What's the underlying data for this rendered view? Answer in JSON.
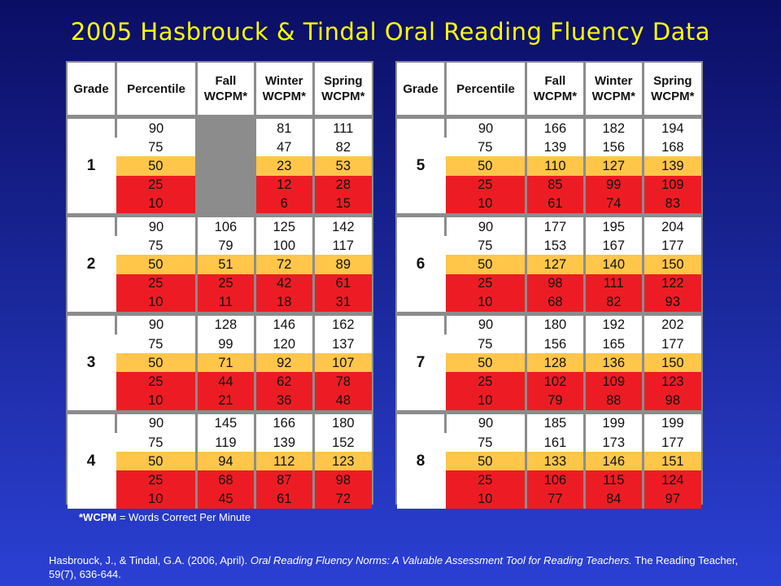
{
  "title": "2005 Hasbrouck & Tindal Oral Reading Fluency Data",
  "headers": [
    "Grade",
    "Percentile",
    "Fall WCPM*",
    "Winter WCPM*",
    "Spring WCPM*"
  ],
  "left_table": [
    {
      "grade": "1",
      "rows": [
        {
          "p": "90",
          "fall": "",
          "winter": "81",
          "spring": "111"
        },
        {
          "p": "75",
          "fall": "",
          "winter": "47",
          "spring": "82"
        },
        {
          "p": "50",
          "fall": "",
          "winter": "23",
          "spring": "53"
        },
        {
          "p": "25",
          "fall": "",
          "winter": "12",
          "spring": "28"
        },
        {
          "p": "10",
          "fall": "",
          "winter": "6",
          "spring": "15"
        }
      ]
    },
    {
      "grade": "2",
      "rows": [
        {
          "p": "90",
          "fall": "106",
          "winter": "125",
          "spring": "142"
        },
        {
          "p": "75",
          "fall": "79",
          "winter": "100",
          "spring": "117"
        },
        {
          "p": "50",
          "fall": "51",
          "winter": "72",
          "spring": "89"
        },
        {
          "p": "25",
          "fall": "25",
          "winter": "42",
          "spring": "61"
        },
        {
          "p": "10",
          "fall": "11",
          "winter": "18",
          "spring": "31"
        }
      ]
    },
    {
      "grade": "3",
      "rows": [
        {
          "p": "90",
          "fall": "128",
          "winter": "146",
          "spring": "162"
        },
        {
          "p": "75",
          "fall": "99",
          "winter": "120",
          "spring": "137"
        },
        {
          "p": "50",
          "fall": "71",
          "winter": "92",
          "spring": "107"
        },
        {
          "p": "25",
          "fall": "44",
          "winter": "62",
          "spring": "78"
        },
        {
          "p": "10",
          "fall": "21",
          "winter": "36",
          "spring": "48"
        }
      ]
    },
    {
      "grade": "4",
      "rows": [
        {
          "p": "90",
          "fall": "145",
          "winter": "166",
          "spring": "180"
        },
        {
          "p": "75",
          "fall": "119",
          "winter": "139",
          "spring": "152"
        },
        {
          "p": "50",
          "fall": "94",
          "winter": "112",
          "spring": "123"
        },
        {
          "p": "25",
          "fall": "68",
          "winter": "87",
          "spring": "98"
        },
        {
          "p": "10",
          "fall": "45",
          "winter": "61",
          "spring": "72"
        }
      ]
    }
  ],
  "right_table": [
    {
      "grade": "5",
      "rows": [
        {
          "p": "90",
          "fall": "166",
          "winter": "182",
          "spring": "194"
        },
        {
          "p": "75",
          "fall": "139",
          "winter": "156",
          "spring": "168"
        },
        {
          "p": "50",
          "fall": "110",
          "winter": "127",
          "spring": "139"
        },
        {
          "p": "25",
          "fall": "85",
          "winter": "99",
          "spring": "109"
        },
        {
          "p": "10",
          "fall": "61",
          "winter": "74",
          "spring": "83"
        }
      ]
    },
    {
      "grade": "6",
      "rows": [
        {
          "p": "90",
          "fall": "177",
          "winter": "195",
          "spring": "204"
        },
        {
          "p": "75",
          "fall": "153",
          "winter": "167",
          "spring": "177"
        },
        {
          "p": "50",
          "fall": "127",
          "winter": "140",
          "spring": "150"
        },
        {
          "p": "25",
          "fall": "98",
          "winter": "111",
          "spring": "122"
        },
        {
          "p": "10",
          "fall": "68",
          "winter": "82",
          "spring": "93"
        }
      ]
    },
    {
      "grade": "7",
      "rows": [
        {
          "p": "90",
          "fall": "180",
          "winter": "192",
          "spring": "202"
        },
        {
          "p": "75",
          "fall": "156",
          "winter": "165",
          "spring": "177"
        },
        {
          "p": "50",
          "fall": "128",
          "winter": "136",
          "spring": "150"
        },
        {
          "p": "25",
          "fall": "102",
          "winter": "109",
          "spring": "123"
        },
        {
          "p": "10",
          "fall": "79",
          "winter": "88",
          "spring": "98"
        }
      ]
    },
    {
      "grade": "8",
      "rows": [
        {
          "p": "90",
          "fall": "185",
          "winter": "199",
          "spring": "199"
        },
        {
          "p": "75",
          "fall": "161",
          "winter": "173",
          "spring": "177"
        },
        {
          "p": "50",
          "fall": "133",
          "winter": "146",
          "spring": "151"
        },
        {
          "p": "25",
          "fall": "106",
          "winter": "115",
          "spring": "124"
        },
        {
          "p": "10",
          "fall": "77",
          "winter": "84",
          "spring": "97"
        }
      ]
    }
  ],
  "footnote": {
    "term": "*WCPM",
    "definition": " = Words Correct Per Minute"
  },
  "citation": {
    "authors": "Hasbrouck, J., & Tindal, G.A. (2006, April). ",
    "work": "Oral Reading Fluency Norms: A Valuable Assessment Tool for Reading Teachers.",
    "source": " The Reading Teacher, 59(7), 636-644."
  },
  "colors": {
    "title": "#ffff00",
    "percentile_50": "#ffc64a",
    "percentile_25_10": "#ed1c24",
    "not_available": "#8c8c8c",
    "background_top": "#0b0e64",
    "background_bottom": "#2b40d4"
  }
}
